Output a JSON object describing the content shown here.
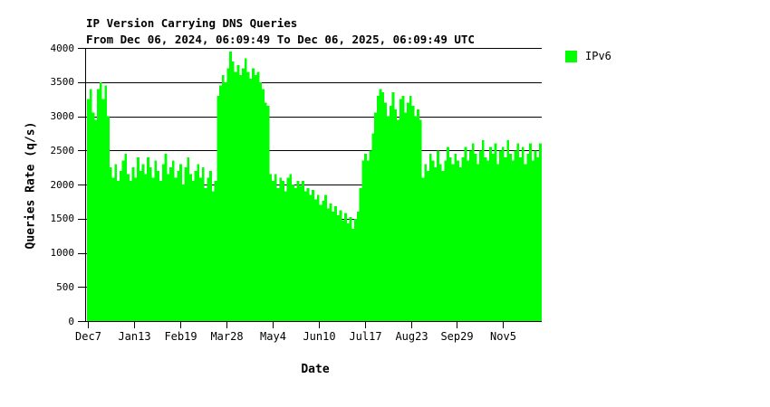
{
  "title": "IP Version Carrying DNS Queries",
  "subtitle": "From Dec 06, 2024, 06:09:49 To Dec 06, 2025, 06:09:49 UTC",
  "legend": {
    "items": [
      {
        "label": "IPv6",
        "color": "#00ff00"
      }
    ]
  },
  "y_axis": {
    "label": "Queries Rate (q/s)",
    "ticks": [
      0,
      500,
      1000,
      1500,
      2000,
      2500,
      3000,
      3500,
      4000
    ]
  },
  "x_axis": {
    "label": "Date",
    "ticks": [
      {
        "label": "Dec7",
        "day": 1
      },
      {
        "label": "Jan13",
        "day": 38
      },
      {
        "label": "Feb19",
        "day": 75
      },
      {
        "label": "Mar28",
        "day": 112
      },
      {
        "label": "May4",
        "day": 149
      },
      {
        "label": "Jun10",
        "day": 186
      },
      {
        "label": "Jul17",
        "day": 223
      },
      {
        "label": "Aug23",
        "day": 260
      },
      {
        "label": "Sep29",
        "day": 297
      },
      {
        "label": "Nov5",
        "day": 334
      }
    ]
  },
  "chart_data": {
    "type": "bar",
    "title": "IP Version Carrying DNS Queries",
    "subtitle": "From Dec 06, 2024, 06:09:49 To Dec 06, 2025, 06:09:49 UTC",
    "xlabel": "Date",
    "ylabel": "Queries Rate (q/s)",
    "ylim": [
      0,
      4000
    ],
    "grid": true,
    "legend_position": "top-right",
    "span_days": 365,
    "bin_days": 2,
    "series": [
      {
        "name": "IPv6",
        "color": "#00ff00",
        "values": [
          3250,
          3400,
          3050,
          2950,
          3400,
          3500,
          3250,
          3450,
          3000,
          2250,
          2100,
          2300,
          2050,
          2200,
          2350,
          2450,
          2150,
          2050,
          2250,
          2100,
          2400,
          2200,
          2300,
          2150,
          2400,
          2250,
          2100,
          2350,
          2200,
          2050,
          2300,
          2450,
          2150,
          2250,
          2350,
          2100,
          2200,
          2300,
          2000,
          2250,
          2400,
          2150,
          2050,
          2200,
          2300,
          2100,
          2250,
          1950,
          2100,
          2200,
          1900,
          2050,
          3300,
          3450,
          3600,
          3500,
          3700,
          3950,
          3800,
          3650,
          3750,
          3600,
          3700,
          3850,
          3650,
          3550,
          3700,
          3600,
          3650,
          3500,
          3400,
          3200,
          3150,
          2150,
          2050,
          2150,
          1950,
          2100,
          2050,
          1900,
          2100,
          2150,
          2000,
          1950,
          2050,
          1980,
          2050,
          1900,
          1950,
          1850,
          1920,
          1780,
          1850,
          1700,
          1760,
          1850,
          1650,
          1720,
          1600,
          1680,
          1550,
          1620,
          1480,
          1580,
          1430,
          1520,
          1350,
          1500,
          1600,
          1950,
          2350,
          2450,
          2350,
          2500,
          2750,
          3050,
          3300,
          3400,
          3350,
          3200,
          3000,
          3150,
          3350,
          3100,
          2950,
          3250,
          3300,
          3050,
          3200,
          3300,
          3150,
          3000,
          3100,
          2950,
          2100,
          2300,
          2200,
          2450,
          2350,
          2250,
          2500,
          2300,
          2200,
          2350,
          2550,
          2400,
          2300,
          2450,
          2350,
          2250,
          2400,
          2550,
          2350,
          2500,
          2600,
          2450,
          2300,
          2500,
          2650,
          2400,
          2350,
          2550,
          2450,
          2600,
          2300,
          2500,
          2550,
          2400,
          2650,
          2450,
          2350,
          2500,
          2600,
          2400,
          2550,
          2300,
          2450,
          2600,
          2350,
          2500,
          2400,
          2600
        ]
      }
    ]
  },
  "colors": {
    "bar": "#00ff00",
    "axis": "#000000",
    "background": "#ffffff"
  }
}
